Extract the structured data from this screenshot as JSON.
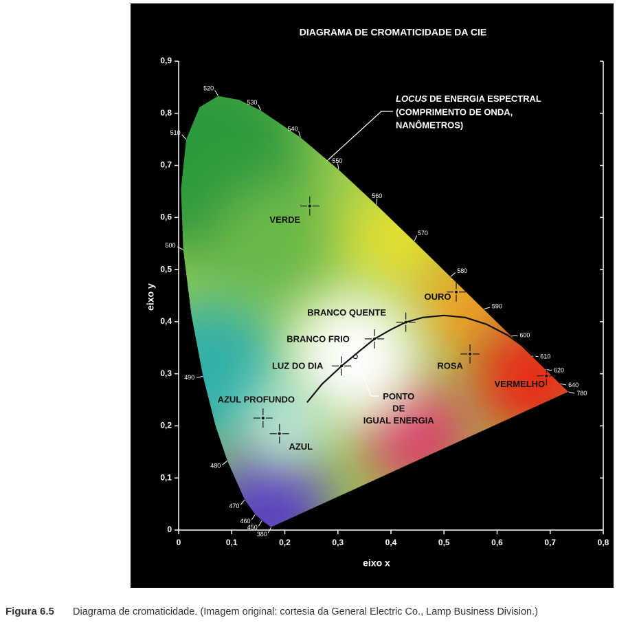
{
  "chart_data": {
    "type": "chromaticity",
    "title": "DIAGRAMA DE CROMATICIDADE DA CIE",
    "xlabel": "eixo x",
    "ylabel": "eixo y",
    "xlim": [
      0,
      0.8
    ],
    "ylim": [
      0,
      0.9
    ],
    "xticks": [
      0,
      {
        "value": 0.1,
        "label": "0,1"
      },
      {
        "value": 0.2,
        "label": "0,2"
      },
      {
        "value": 0.3,
        "label": "0,3"
      },
      {
        "value": 0.4,
        "label": "0,4"
      },
      {
        "value": 0.5,
        "label": "0,5"
      },
      {
        "value": 0.6,
        "label": "0,6"
      },
      {
        "value": 0.7,
        "label": "0,7"
      },
      {
        "value": 0.8,
        "label": "0,8"
      }
    ],
    "yticks": [
      0,
      {
        "value": 0.1,
        "label": "0,1"
      },
      {
        "value": 0.2,
        "label": "0,2"
      },
      {
        "value": 0.3,
        "label": "0,3"
      },
      {
        "value": 0.4,
        "label": "0,4"
      },
      {
        "value": 0.5,
        "label": "0,5"
      },
      {
        "value": 0.6,
        "label": "0,6"
      },
      {
        "value": 0.7,
        "label": "0,7"
      },
      {
        "value": 0.8,
        "label": "0,8"
      },
      {
        "value": 0.9,
        "label": "0,9"
      }
    ],
    "annotation": [
      "LOCUS",
      " DE ENERGIA ESPECTRAL",
      "(COMPRIMENTO DE ONDA,",
      "NANÔMETROS)"
    ],
    "locus": {
      "wavelengths": [
        380,
        450,
        460,
        470,
        480,
        null,
        490,
        null,
        500,
        null,
        510,
        null,
        520,
        null,
        530,
        540,
        550,
        560,
        570,
        580,
        590,
        600,
        610,
        620,
        640,
        780
      ],
      "x": [
        0.1741,
        0.1566,
        0.144,
        0.1241,
        0.0913,
        0.0687,
        0.0454,
        0.0235,
        0.0082,
        0.0039,
        0.0139,
        0.0389,
        0.0743,
        0.1142,
        0.1547,
        0.2296,
        0.3016,
        0.3731,
        0.4441,
        0.5125,
        0.5752,
        0.627,
        0.6658,
        0.6915,
        0.719,
        0.7347
      ],
      "y": [
        0.005,
        0.0177,
        0.0297,
        0.0578,
        0.1327,
        0.2007,
        0.295,
        0.4127,
        0.5384,
        0.6548,
        0.7502,
        0.812,
        0.8338,
        0.8262,
        0.8059,
        0.7543,
        0.6923,
        0.6245,
        0.5547,
        0.4866,
        0.4242,
        0.3725,
        0.334,
        0.3083,
        0.2809,
        0.2653
      ]
    },
    "planckian": {
      "x": [
        0.242,
        0.27,
        0.307,
        0.34,
        0.369,
        0.4,
        0.428,
        0.46,
        0.5,
        0.54,
        0.58,
        0.62,
        0.65,
        0.673
      ],
      "y": [
        0.245,
        0.28,
        0.315,
        0.343,
        0.367,
        0.385,
        0.399,
        0.408,
        0.412,
        0.408,
        0.395,
        0.374,
        0.352,
        0.331
      ]
    },
    "points": [
      {
        "label": [
          "VERDE"
        ],
        "x": 0.247,
        "y": 0.622
      },
      {
        "label": [
          "OURO"
        ],
        "x": 0.523,
        "y": 0.457
      },
      {
        "label": [
          "BRANCO QUENTE"
        ],
        "x": 0.428,
        "y": 0.399
      },
      {
        "label": [
          "BRANCO FRIO"
        ],
        "x": 0.369,
        "y": 0.367
      },
      {
        "label": [
          "LUZ DO DIA"
        ],
        "x": 0.307,
        "y": 0.315
      },
      {
        "label": [
          "ROSA"
        ],
        "x": 0.549,
        "y": 0.338
      },
      {
        "label": [
          "VERMELHO"
        ],
        "x": 0.693,
        "y": 0.296
      },
      {
        "label": [
          "AZUL PROFUNDO"
        ],
        "x": 0.159,
        "y": 0.215
      },
      {
        "label": [
          "AZUL"
        ],
        "x": 0.19,
        "y": 0.185
      },
      {
        "label": [
          "PONTO",
          "DE",
          "IGUAL ENERGIA"
        ],
        "x": 0.333,
        "y": 0.333,
        "marker": "circle"
      }
    ]
  },
  "caption": {
    "label": "Figura 6.5",
    "text": "Diagrama de cromaticidade. (Imagem original: cortesia da General Electric Co., Lamp Business Division.)"
  }
}
